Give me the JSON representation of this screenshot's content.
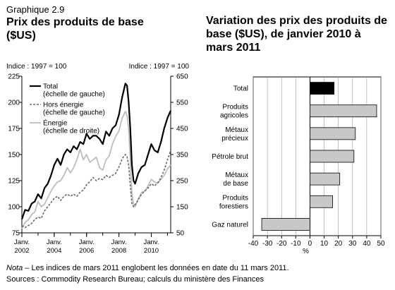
{
  "header": {
    "kicker": "Graphique 2.9",
    "title_left": "Prix des produits de base ($US)",
    "title_right": "Variation des prix des produits de base ($US), de janvier 2010 à mars 2011"
  },
  "footer": {
    "note_label": "Nota",
    "note_text": " – Les indices de mars 2011 englobent les données en date du 11 mars 2011.",
    "sources": "Sources : Commodity Research Bureau; calculs du ministère des Finances"
  },
  "colors": {
    "total": "#000000",
    "hors_energie": "#666666",
    "energie": "#bdbdbd",
    "bar_total": "#000000",
    "bar_other": "#c8c8c8"
  },
  "chart_data": [
    {
      "type": "line",
      "left_axis_label": "Indice : 1997 = 100",
      "right_axis_label": "Indice : 1997 = 100",
      "yticks_left": [
        75,
        100,
        125,
        150,
        175,
        200,
        225
      ],
      "yticks_right": [
        50,
        150,
        250,
        350,
        450,
        550,
        650
      ],
      "ylim_left": [
        75,
        225
      ],
      "ylim_right": [
        50,
        650
      ],
      "xlim": [
        2002.0,
        2011.2
      ],
      "xticks": [
        {
          "pos": 2002.0,
          "line1": "Janv.",
          "line2": "2002"
        },
        {
          "pos": 2004.0,
          "line1": "Janv.",
          "line2": "2004"
        },
        {
          "pos": 2006.0,
          "line1": "Janv.",
          "line2": "2006"
        },
        {
          "pos": 2008.0,
          "line1": "Janv.",
          "line2": "2008"
        },
        {
          "pos": 2010.0,
          "line1": "Janv.",
          "line2": "2010"
        }
      ],
      "legend": [
        {
          "line1": "Total",
          "line2": "(échelle de gauche)",
          "style": "solid"
        },
        {
          "line1": "Hors énergie",
          "line2": "(échelle de gauche)",
          "style": "dashed"
        },
        {
          "line1": "Énergie",
          "line2": "(échelle de droite)",
          "style": "light"
        }
      ],
      "series": [
        {
          "name": "Total",
          "axis": "left",
          "x": [
            2002.0,
            2002.2,
            2002.4,
            2002.6,
            2002.8,
            2003.0,
            2003.2,
            2003.4,
            2003.6,
            2003.8,
            2004.0,
            2004.2,
            2004.4,
            2004.6,
            2004.8,
            2005.0,
            2005.2,
            2005.4,
            2005.6,
            2005.8,
            2006.0,
            2006.2,
            2006.4,
            2006.6,
            2006.8,
            2007.0,
            2007.2,
            2007.4,
            2007.6,
            2007.8,
            2008.0,
            2008.2,
            2008.4,
            2008.5,
            2008.6,
            2008.7,
            2008.8,
            2008.9,
            2009.0,
            2009.1,
            2009.2,
            2009.4,
            2009.6,
            2009.8,
            2010.0,
            2010.2,
            2010.4,
            2010.6,
            2010.8,
            2011.0,
            2011.2
          ],
          "y": [
            88,
            97,
            96,
            103,
            105,
            112,
            108,
            118,
            122,
            130,
            140,
            146,
            140,
            150,
            155,
            152,
            158,
            155,
            162,
            160,
            170,
            165,
            168,
            168,
            165,
            160,
            172,
            168,
            175,
            178,
            188,
            205,
            218,
            216,
            200,
            175,
            140,
            125,
            122,
            127,
            132,
            138,
            140,
            150,
            160,
            154,
            152,
            162,
            175,
            185,
            192
          ]
        },
        {
          "name": "Hors énergie",
          "axis": "left",
          "x": [
            2002.0,
            2002.2,
            2002.4,
            2002.6,
            2002.8,
            2003.0,
            2003.2,
            2003.4,
            2003.6,
            2003.8,
            2004.0,
            2004.2,
            2004.4,
            2004.6,
            2004.8,
            2005.0,
            2005.2,
            2005.4,
            2005.6,
            2005.8,
            2006.0,
            2006.2,
            2006.4,
            2006.6,
            2006.8,
            2007.0,
            2007.2,
            2007.4,
            2007.6,
            2007.8,
            2008.0,
            2008.2,
            2008.4,
            2008.5,
            2008.6,
            2008.7,
            2008.8,
            2008.9,
            2009.0,
            2009.1,
            2009.2,
            2009.4,
            2009.6,
            2009.8,
            2010.0,
            2010.2,
            2010.4,
            2010.6,
            2010.8,
            2011.0,
            2011.2
          ],
          "y": [
            82,
            80,
            82,
            84,
            88,
            90,
            89,
            96,
            100,
            104,
            108,
            110,
            106,
            110,
            112,
            110,
            112,
            110,
            114,
            116,
            121,
            124,
            128,
            125,
            127,
            126,
            130,
            128,
            130,
            132,
            138,
            146,
            150,
            148,
            140,
            120,
            103,
            100,
            102,
            104,
            107,
            112,
            115,
            118,
            122,
            120,
            123,
            128,
            135,
            145,
            154
          ]
        },
        {
          "name": "Énergie",
          "axis": "right",
          "x": [
            2002.0,
            2002.2,
            2002.4,
            2002.6,
            2002.8,
            2003.0,
            2003.2,
            2003.4,
            2003.6,
            2003.8,
            2004.0,
            2004.2,
            2004.4,
            2004.6,
            2004.8,
            2005.0,
            2005.2,
            2005.4,
            2005.6,
            2005.8,
            2006.0,
            2006.2,
            2006.4,
            2006.6,
            2006.8,
            2007.0,
            2007.2,
            2007.4,
            2007.6,
            2007.8,
            2008.0,
            2008.2,
            2008.4,
            2008.5,
            2008.6,
            2008.7,
            2008.8,
            2008.9,
            2009.0,
            2009.1,
            2009.2,
            2009.4,
            2009.6,
            2009.8,
            2010.0,
            2010.2,
            2010.4,
            2010.6,
            2010.8,
            2011.0,
            2011.2
          ],
          "y": [
            65,
            90,
            100,
            120,
            130,
            170,
            150,
            160,
            185,
            210,
            230,
            245,
            250,
            270,
            300,
            280,
            300,
            330,
            370,
            330,
            350,
            320,
            330,
            340,
            300,
            290,
            330,
            345,
            390,
            420,
            440,
            490,
            515,
            500,
            450,
            330,
            200,
            160,
            150,
            165,
            180,
            205,
            210,
            230,
            255,
            245,
            240,
            255,
            270,
            295,
            310
          ]
        }
      ]
    },
    {
      "type": "bar",
      "orientation": "horizontal",
      "categories": [
        "Total",
        "Produits agricoles",
        "Métaux précieux",
        "Pétrole brut",
        "Métaux de base",
        "Produits forestiers",
        "Gaz naturel"
      ],
      "category_lines": [
        [
          "Total"
        ],
        [
          "Produits",
          "agricoles"
        ],
        [
          "Métaux",
          "précieux"
        ],
        [
          "Pétrole brut"
        ],
        [
          "Métaux",
          "de base"
        ],
        [
          "Produits",
          "forestiers"
        ],
        [
          "Gaz naturel"
        ]
      ],
      "values": [
        17,
        47,
        32,
        31,
        21,
        16,
        -34
      ],
      "xlim": [
        -40,
        50
      ],
      "xticks": [
        -40,
        -30,
        -20,
        -10,
        0,
        10,
        20,
        30,
        40,
        50
      ],
      "xlabel": "%"
    }
  ]
}
